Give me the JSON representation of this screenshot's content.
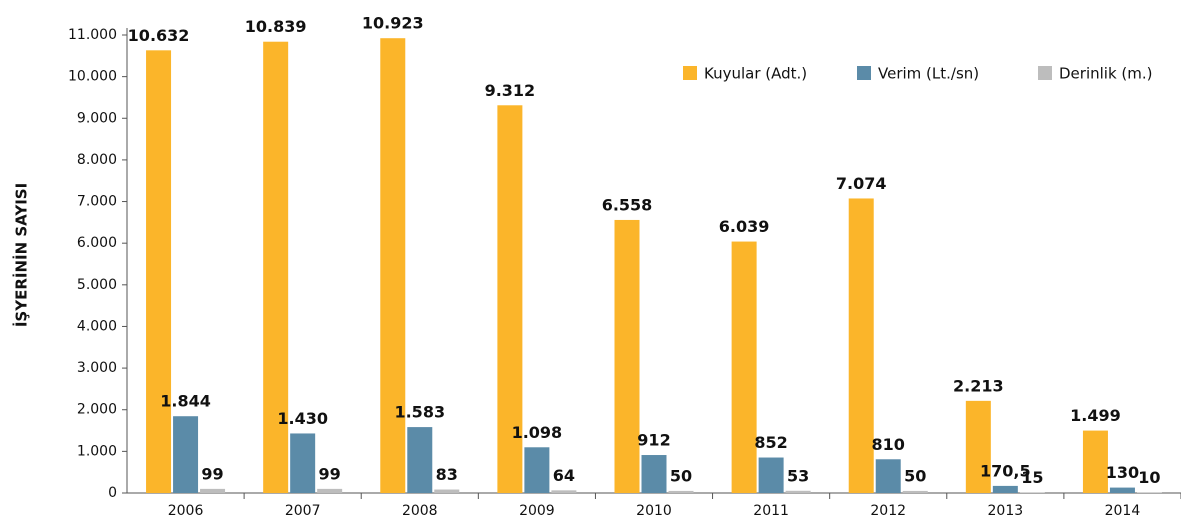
{
  "chart_data": {
    "type": "bar",
    "y_label": "İŞYERİNİN SAYISI",
    "categories": [
      "2006",
      "2007",
      "2008",
      "2009",
      "2010",
      "2011",
      "2012",
      "2013",
      "2014"
    ],
    "series": [
      {
        "name": "Kuyular (Adt.)",
        "color": "#fbb52a",
        "values": [
          10632,
          10839,
          10923,
          9312,
          6558,
          6039,
          7074,
          2213,
          1499
        ],
        "value_labels": [
          "10.632",
          "10.839",
          "10.923",
          "9.312",
          "6.558",
          "6.039",
          "7.074",
          "2.213",
          "1.499"
        ]
      },
      {
        "name": "Verim (Lt./sn)",
        "color": "#5b8ba8",
        "values": [
          1844,
          1430,
          1583,
          1098,
          912,
          852,
          810,
          170.5,
          130
        ],
        "value_labels": [
          "1.844",
          "1.430",
          "1.583",
          "1.098",
          "912",
          "852",
          "810",
          "170,5",
          "130"
        ]
      },
      {
        "name": "Derinlik (m.)",
        "color": "#bdbdbd",
        "values": [
          99,
          99,
          83,
          64,
          50,
          53,
          50,
          15,
          10
        ],
        "value_labels": [
          "99",
          "99",
          "83",
          "64",
          "50",
          "53",
          "50",
          "15",
          "10"
        ]
      }
    ],
    "ylim": [
      0,
      11000
    ],
    "yticks": [
      0,
      {
        "value": 1000,
        "label": "1.000"
      },
      {
        "value": 2000,
        "label": "2.000"
      },
      {
        "value": 3000,
        "label": "3.000"
      },
      {
        "value": 4000,
        "label": "4.000"
      },
      {
        "value": 5000,
        "label": "5.000"
      },
      {
        "value": 6000,
        "label": "6.000"
      },
      {
        "value": 7000,
        "label": "7.000"
      },
      {
        "value": 8000,
        "label": "8.000"
      },
      {
        "value": 9000,
        "label": "9.000"
      },
      {
        "value": 10000,
        "label": "10.000"
      },
      {
        "value": 11000,
        "label": "11.000"
      }
    ],
    "legend": "top-right"
  }
}
